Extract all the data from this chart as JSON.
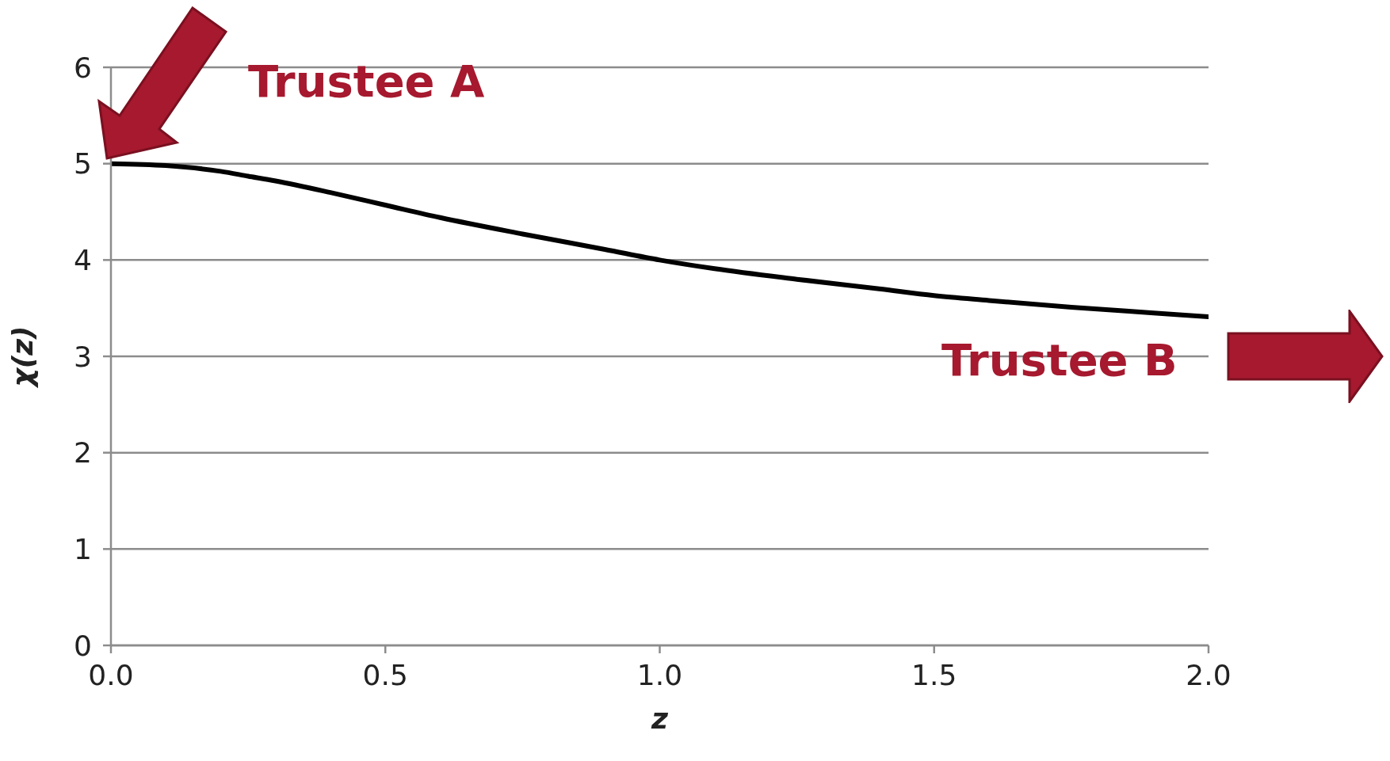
{
  "chart_data": {
    "type": "line",
    "xlabel": "z",
    "ylabel": "χ(z)",
    "x": [
      0,
      0.1,
      0.2,
      0.25,
      0.3,
      0.4,
      0.5,
      0.6,
      0.75,
      0.9,
      1.0,
      1.1,
      1.25,
      1.4,
      1.5,
      1.6,
      1.75,
      1.9,
      2.0
    ],
    "series": [
      {
        "color": "#000000",
        "values": [
          5.0,
          4.98,
          4.92,
          4.87,
          4.82,
          4.7,
          4.57,
          4.44,
          4.27,
          4.11,
          4.0,
          3.91,
          3.8,
          3.7,
          3.63,
          3.58,
          3.51,
          3.45,
          3.41
        ]
      }
    ],
    "xlim": [
      0,
      2
    ],
    "xticks": [
      {
        "value": 0,
        "label": "0.0"
      },
      {
        "value": 0.5,
        "label": "0.5"
      },
      {
        "value": 1,
        "label": "1.0"
      },
      {
        "value": 1.5,
        "label": "1.5"
      },
      {
        "value": 2,
        "label": "2.0"
      }
    ],
    "ylim": [
      0,
      6
    ],
    "yticks": [
      0,
      1,
      2,
      3,
      4,
      5,
      6
    ],
    "grid": "y",
    "marker": "none",
    "line_style": "solid",
    "legend": false,
    "annotations": [
      "Trustee A",
      "Trustee B"
    ]
  }
}
